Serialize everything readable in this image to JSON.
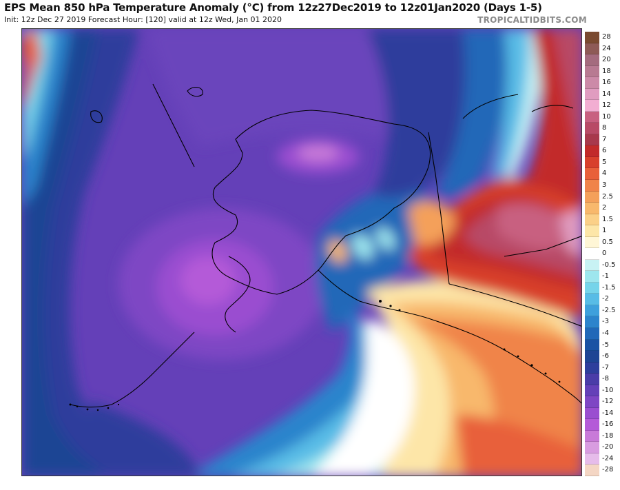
{
  "header": {
    "title": "EPS Mean 850 hPa Temperature Anomaly (°C) from 12z27Dec2019 to 12z01Jan2020 (Days 1-5)",
    "subtitle": "Init: 12z Dec 27 2019   Forecast Hour: [120]   valid at 12z Wed, Jan 01 2020",
    "source": "TROPICALTIDBITS.COM"
  },
  "colorbar": {
    "levels": [
      {
        "label": "28",
        "color": "#7a4a30"
      },
      {
        "label": "24",
        "color": "#8e5a56"
      },
      {
        "label": "20",
        "color": "#a46b7e"
      },
      {
        "label": "18",
        "color": "#b87a92"
      },
      {
        "label": "16",
        "color": "#cc8aa8"
      },
      {
        "label": "14",
        "color": "#e09cc0"
      },
      {
        "label": "12",
        "color": "#f2aed2"
      },
      {
        "label": "10",
        "color": "#c86080"
      },
      {
        "label": "8",
        "color": "#b84a66"
      },
      {
        "label": "7",
        "color": "#a8384c"
      },
      {
        "label": "6",
        "color": "#c22a2a"
      },
      {
        "label": "5",
        "color": "#d8402c"
      },
      {
        "label": "4",
        "color": "#e8603a"
      },
      {
        "label": "3",
        "color": "#f0844a"
      },
      {
        "label": "2.5",
        "color": "#f4a05a"
      },
      {
        "label": "2",
        "color": "#f8b86c"
      },
      {
        "label": "1.5",
        "color": "#fbd088"
      },
      {
        "label": "1",
        "color": "#fde6a8"
      },
      {
        "label": "0.5",
        "color": "#fff6d6"
      },
      {
        "label": "0",
        "color": "#ffffff"
      },
      {
        "label": "-0.5",
        "color": "#c8f2f4"
      },
      {
        "label": "-1",
        "color": "#9ee6ee"
      },
      {
        "label": "-1.5",
        "color": "#76d4ea"
      },
      {
        "label": "-2",
        "color": "#58bce6"
      },
      {
        "label": "-2.5",
        "color": "#3ea0dc"
      },
      {
        "label": "-3",
        "color": "#2c84cc"
      },
      {
        "label": "-4",
        "color": "#2068b8"
      },
      {
        "label": "-5",
        "color": "#1a52a4"
      },
      {
        "label": "-6",
        "color": "#1e4494"
      },
      {
        "label": "-7",
        "color": "#2e3e9c"
      },
      {
        "label": "-8",
        "color": "#4a3ca8"
      },
      {
        "label": "-10",
        "color": "#6440b8"
      },
      {
        "label": "-12",
        "color": "#7e46c4"
      },
      {
        "label": "-14",
        "color": "#9a4ed0"
      },
      {
        "label": "-16",
        "color": "#b45ad8"
      },
      {
        "label": "-18",
        "color": "#c87ad8"
      },
      {
        "label": "-20",
        "color": "#d89ce0"
      },
      {
        "label": "-24",
        "color": "#e6bcea"
      },
      {
        "label": "-28",
        "color": "#f4d6c4"
      }
    ]
  }
}
